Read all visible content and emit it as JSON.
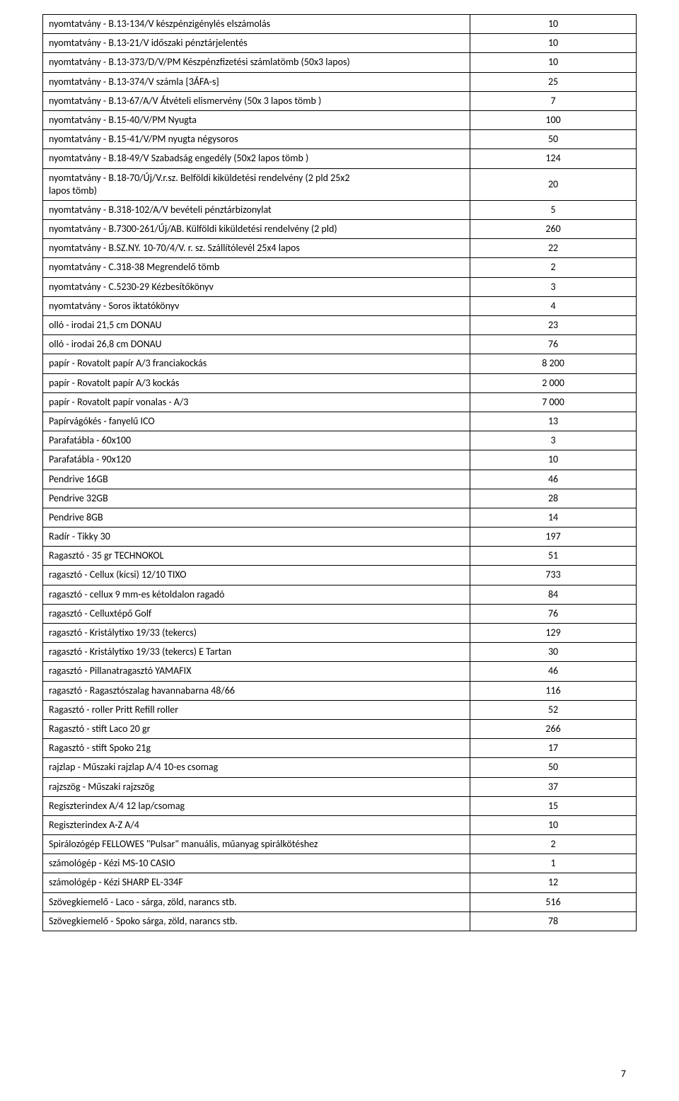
{
  "page_number": "7",
  "rows": [
    {
      "label": "nyomtatvány - B.13-134/V készpénzigénylés elszámolás",
      "value": "10"
    },
    {
      "label": "nyomtatvány - B.13-21/V időszaki pénztárjelentés",
      "value": "10"
    },
    {
      "label": "nyomtatvány - B.13-373/D/V/PM Készpénzfizetési számlatömb (50x3 lapos)",
      "value": "10"
    },
    {
      "label": "nyomtatvány - B.13-374/V számla {3ÁFA-s}",
      "value": "25"
    },
    {
      "label": "nyomtatvány - B.13-67/A/V Átvételi elismervény (50x 3 lapos tömb )",
      "value": "7"
    },
    {
      "label": "nyomtatvány - B.15-40/V/PM Nyugta",
      "value": "100"
    },
    {
      "label": "nyomtatvány - B.15-41/V/PM nyugta négysoros",
      "value": "50"
    },
    {
      "label": "nyomtatvány - B.18-49/V Szabadság engedély (50x2 lapos tömb )",
      "value": "124"
    },
    {
      "label": "nyomtatvány - B.18-70/Új/V.r.sz. Belföldi kiküldetési rendelvény (2 pld 25x2\nlapos tömb)",
      "value": "20",
      "multiline": true
    },
    {
      "label": "nyomtatvány - B.318-102/A/V bevételi pénztárbizonylat",
      "value": "5"
    },
    {
      "label": "nyomtatvány - B.7300-261/Új/AB. Külföldi kiküldetési rendelvény (2 pld)",
      "value": "260"
    },
    {
      "label": "nyomtatvány - B.SZ.NY. 10-70/4/V. r. sz. Szállítólevél 25x4 lapos",
      "value": "22"
    },
    {
      "label": "nyomtatvány - C.318-38 Megrendelő tömb",
      "value": "2"
    },
    {
      "label": "nyomtatvány - C.5230-29 Kézbesítőkönyv",
      "value": "3"
    },
    {
      "label": "nyomtatvány - Soros iktatókönyv",
      "value": "4"
    },
    {
      "label": "olló - irodai 21,5 cm DONAU",
      "value": "23"
    },
    {
      "label": "olló - irodai 26,8 cm DONAU",
      "value": "76"
    },
    {
      "label": "papír - Rovatolt papír A/3 franciakockás",
      "value": "8 200"
    },
    {
      "label": "papír - Rovatolt papír A/3 kockás",
      "value": "2 000"
    },
    {
      "label": "papír - Rovatolt papír vonalas - A/3",
      "value": "7 000"
    },
    {
      "label": "Papírvágókés - fanyelű ICO",
      "value": "13"
    },
    {
      "label": "Parafatábla - 60x100",
      "value": "3"
    },
    {
      "label": "Parafatábla - 90x120",
      "value": "10"
    },
    {
      "label": "Pendrive 16GB",
      "value": "46"
    },
    {
      "label": "Pendrive 32GB",
      "value": "28"
    },
    {
      "label": "Pendrive 8GB",
      "value": "14"
    },
    {
      "label": "Radír - Tikky  30",
      "value": "197"
    },
    {
      "label": "Ragasztó - 35 gr TECHNOKOL",
      "value": "51"
    },
    {
      "label": "ragasztó - Cellux (kicsi) 12/10 TIXO",
      "value": "733"
    },
    {
      "label": "ragasztó - cellux 9 mm-es kétoldalon ragadó",
      "value": "84"
    },
    {
      "label": "ragasztó - Celluxtépő Golf",
      "value": "76"
    },
    {
      "label": "ragasztó - Kristálytixo 19/33 (tekercs)",
      "value": "129"
    },
    {
      "label": "ragasztó - Kristálytixo 19/33 (tekercs) E Tartan",
      "value": "30"
    },
    {
      "label": "ragasztó - Pillanatragasztó YAMAFIX",
      "value": "46"
    },
    {
      "label": "ragasztó - Ragasztószalag havannabarna 48/66",
      "value": "116"
    },
    {
      "label": "Ragasztó - roller Pritt Refill roller",
      "value": "52"
    },
    {
      "label": "Ragasztó - stift Laco  20 gr",
      "value": "266"
    },
    {
      "label": "Ragasztó - stift Spoko 21g",
      "value": "17"
    },
    {
      "label": "rajzlap - Műszaki rajzlap A/4 10-es csomag",
      "value": "50"
    },
    {
      "label": "rajzszög - Műszaki rajzszög",
      "value": "37"
    },
    {
      "label": "Regiszterindex A/4 12 lap/csomag",
      "value": "15"
    },
    {
      "label": "Regiszterindex A-Z A/4",
      "value": "10"
    },
    {
      "label": "Spirálozógép FELLOWES \"Pulsar\" manuális, műanyag spirálkötéshez",
      "value": "2"
    },
    {
      "label": "számológép - Kézi MS-10 CASIO",
      "value": "1"
    },
    {
      "label": "számológép - Kézi SHARP  EL-334F",
      "value": "12"
    },
    {
      "label": "Szövegkiemelő - Laco - sárga, zöld, narancs stb.",
      "value": "516"
    },
    {
      "label": "Szövegkiemelő - Spoko sárga, zöld, narancs stb.",
      "value": "78"
    }
  ]
}
